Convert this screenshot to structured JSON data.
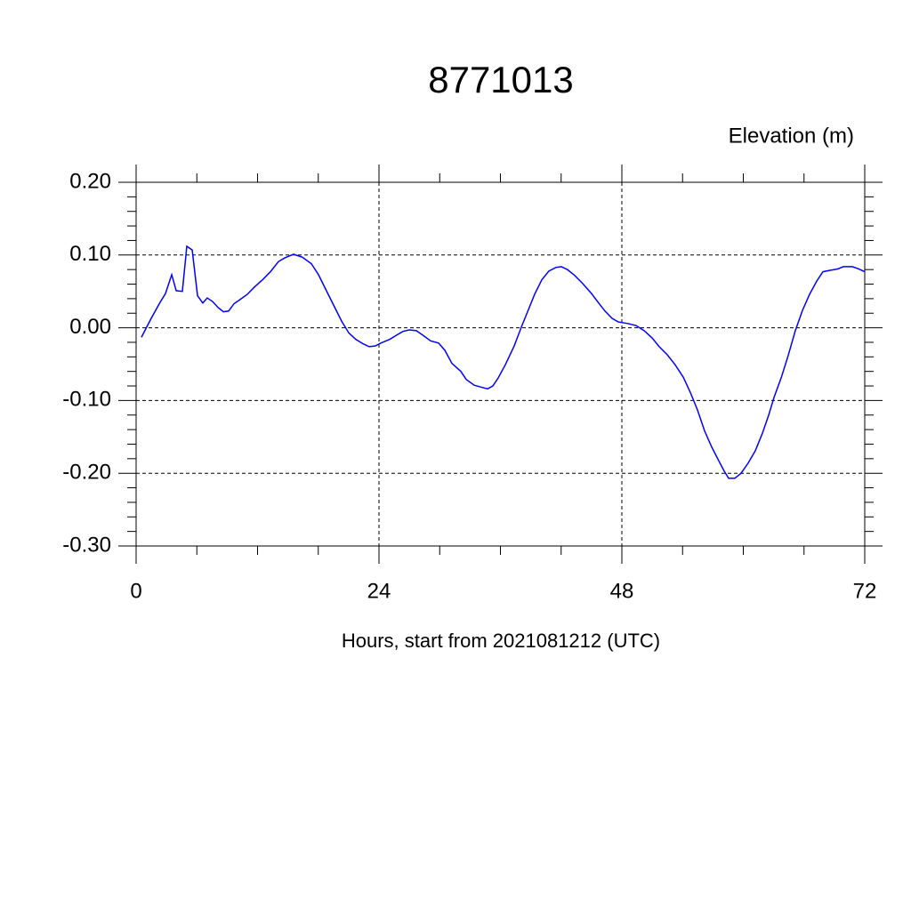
{
  "chart_data": {
    "type": "line",
    "title": "8771013",
    "subtitle": "Elevation (m)",
    "x_label": "Hours, start from 2021081212 (UTC)",
    "xlim": [
      0,
      72
    ],
    "xticks": [
      0,
      24,
      48,
      72
    ],
    "xminorticks": [
      6,
      12,
      18,
      30,
      36,
      42,
      54,
      60,
      66
    ],
    "ylim": [
      -0.3,
      0.2
    ],
    "yticks": [
      {
        "value": -0.3,
        "label": "-0.30"
      },
      {
        "value": -0.2,
        "label": "-0.20"
      },
      {
        "value": -0.1,
        "label": "-0.10"
      },
      {
        "value": 0,
        "label": "0.00"
      },
      {
        "value": 0.1,
        "label": "0.10"
      },
      {
        "value": 0.2,
        "label": "0.20"
      }
    ],
    "yminorticks": [
      -0.28,
      -0.26,
      -0.24,
      -0.22,
      -0.18,
      -0.16,
      -0.14,
      -0.12,
      -0.08,
      -0.06,
      -0.04,
      -0.02,
      0.02,
      0.04,
      0.06,
      0.08,
      0.12,
      0.14,
      0.16,
      0.18
    ],
    "grid": true,
    "series": [
      {
        "color": "#0000ff",
        "x": [
          0.53,
          1.49,
          2.37,
          2.9,
          3.52,
          3.96,
          4.57,
          5.01,
          5.54,
          6.07,
          6.59,
          7.03,
          7.56,
          8.09,
          8.62,
          9.14,
          9.67,
          10.29,
          10.99,
          11.69,
          12.57,
          13.27,
          14.07,
          14.68,
          15.56,
          16.44,
          17.32,
          18.02,
          18.73,
          19.52,
          20.31,
          21.01,
          21.71,
          22.42,
          23.03,
          23.65,
          24.18,
          25.05,
          25.76,
          26.37,
          26.99,
          27.69,
          28.31,
          29.1,
          29.89,
          30.51,
          31.21,
          32.09,
          32.62,
          33.41,
          34.2,
          34.73,
          35.25,
          35.78,
          36.48,
          37.36,
          38.07,
          38.77,
          39.38,
          40.09,
          40.79,
          41.49,
          42.02,
          42.62,
          43.33,
          44.12,
          45.0,
          45.71,
          46.33,
          47.03,
          47.65,
          48.53,
          49.41,
          50.2,
          50.99,
          51.69,
          52.48,
          53.27,
          54.07,
          54.77,
          55.47,
          56.18,
          56.88,
          57.58,
          58.11,
          58.55,
          59.16,
          59.78,
          60.48,
          61.19,
          61.89,
          62.51,
          63.03,
          63.74,
          64.44,
          65.14,
          65.85,
          66.55,
          67.25,
          67.87,
          68.57,
          69.36,
          69.89,
          70.77,
          71.38,
          72.0
        ],
        "values": [
          -0.013,
          0.013,
          0.035,
          0.047,
          0.073,
          0.051,
          0.05,
          0.112,
          0.107,
          0.044,
          0.034,
          0.041,
          0.036,
          0.028,
          0.022,
          0.023,
          0.033,
          0.039,
          0.046,
          0.056,
          0.067,
          0.077,
          0.091,
          0.096,
          0.101,
          0.097,
          0.088,
          0.073,
          0.053,
          0.031,
          0.009,
          -0.007,
          -0.016,
          -0.022,
          -0.026,
          -0.025,
          -0.021,
          -0.016,
          -0.01,
          -0.005,
          -0.003,
          -0.004,
          -0.01,
          -0.018,
          -0.021,
          -0.031,
          -0.049,
          -0.06,
          -0.071,
          -0.079,
          -0.082,
          -0.084,
          -0.08,
          -0.069,
          -0.051,
          -0.025,
          0.001,
          0.025,
          0.046,
          0.066,
          0.078,
          0.083,
          0.084,
          0.08,
          0.072,
          0.061,
          0.047,
          0.034,
          0.023,
          0.013,
          0.008,
          0.006,
          0.003,
          -0.004,
          -0.014,
          -0.026,
          -0.037,
          -0.051,
          -0.068,
          -0.089,
          -0.113,
          -0.142,
          -0.164,
          -0.183,
          -0.197,
          -0.207,
          -0.207,
          -0.2,
          -0.186,
          -0.169,
          -0.145,
          -0.12,
          -0.096,
          -0.069,
          -0.038,
          -0.004,
          0.024,
          0.046,
          0.064,
          0.077,
          0.079,
          0.081,
          0.084,
          0.084,
          0.081,
          0.077
        ]
      }
    ]
  }
}
